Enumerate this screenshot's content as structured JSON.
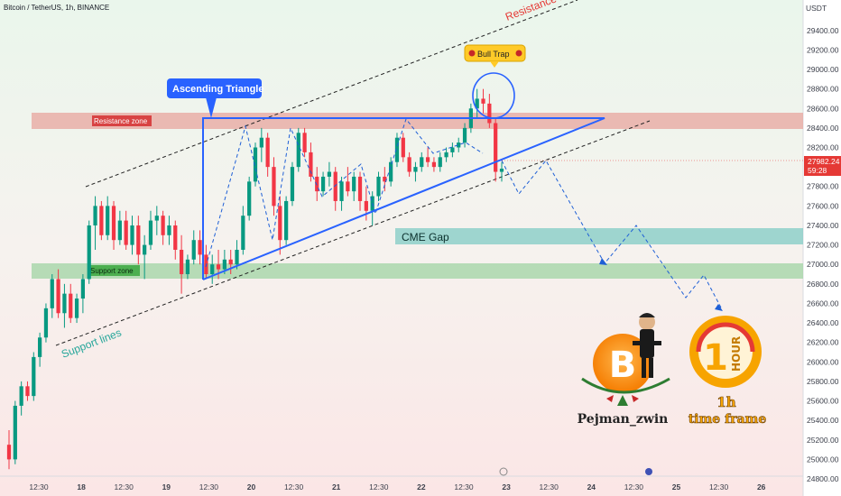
{
  "header": {
    "symbol_line": "Bitcoin / TetherUS, 1h, BINANCE",
    "currency": "USDT"
  },
  "price_badge": {
    "price": "27982.24",
    "countdown": "59:28",
    "color": "#e53935"
  },
  "labels": {
    "resistance_zone": "Resistance zone",
    "support_zone": "Support zone",
    "ascending_triangle": "Ascending Triangle",
    "cme_gap": "CME Gap",
    "resistance_lines": "Resistance lines",
    "support_lines": "Support lines",
    "bull_trap": "Bull Trap",
    "author": "Pejman_zwin",
    "timeframe_line1": "1h",
    "timeframe_line2": "time frame",
    "hour_logo": "HOUR",
    "hour_logo_digit": "1",
    "bitcoin_logo": "B"
  },
  "colors": {
    "up": "#089981",
    "down": "#f23645",
    "triangle": "#2962ff",
    "resistance_zone": "#e8a59e",
    "support_zone": "#a5d6a7",
    "cme_gap": "#80cbc4",
    "bull_trap_bg": "#ffca28",
    "projection": "#1e5fd6",
    "hour_logo": "#f7a400"
  },
  "chart_data": {
    "type": "candlestick",
    "symbol": "BTCUSDT",
    "timeframe": "1h",
    "ylim": [
      24800,
      29500
    ],
    "y_ticks": [
      24800,
      25000,
      25200,
      25400,
      25600,
      25800,
      26000,
      26200,
      26400,
      26600,
      26800,
      27000,
      27200,
      27400,
      27600,
      27800,
      28000,
      28200,
      28400,
      28600,
      28800,
      29000,
      29200,
      29400
    ],
    "y_tick_labels": [
      "24800.00",
      "25000.00",
      "25200.00",
      "25400.00",
      "25600.00",
      "25800.00",
      "26000.00",
      "26200.00",
      "26400.00",
      "26600.00",
      "26800.00",
      "27000.00",
      "27200.00",
      "27400.00",
      "27600.00",
      "27800.00",
      "28000.00",
      "28200.00",
      "28400.00",
      "28600.00",
      "28800.00",
      "29000.00",
      "29200.00",
      "29400.00"
    ],
    "x_ticks": [
      {
        "label": "12:30",
        "bold": false
      },
      {
        "label": "18",
        "bold": true
      },
      {
        "label": "12:30",
        "bold": false
      },
      {
        "label": "19",
        "bold": true
      },
      {
        "label": "12:30",
        "bold": false
      },
      {
        "label": "20",
        "bold": true
      },
      {
        "label": "12:30",
        "bold": false
      },
      {
        "label": "21",
        "bold": true
      },
      {
        "label": "12:30",
        "bold": false
      },
      {
        "label": "22",
        "bold": true
      },
      {
        "label": "12:30",
        "bold": false
      },
      {
        "label": "23",
        "bold": true
      },
      {
        "label": "12:30",
        "bold": false
      },
      {
        "label": "24",
        "bold": true
      },
      {
        "label": "12:30",
        "bold": false
      },
      {
        "label": "25",
        "bold": true
      },
      {
        "label": "12:30",
        "bold": false
      },
      {
        "label": "26",
        "bold": true
      }
    ],
    "candles": [
      [
        25150,
        25300,
        24900,
        25000
      ],
      [
        25000,
        25600,
        24950,
        25550
      ],
      [
        25550,
        25800,
        25450,
        25750
      ],
      [
        25750,
        25800,
        25600,
        25650
      ],
      [
        25650,
        26100,
        25600,
        26050
      ],
      [
        26050,
        26300,
        25950,
        26250
      ],
      [
        26250,
        26600,
        26200,
        26550
      ],
      [
        26550,
        26900,
        26450,
        26850
      ],
      [
        26850,
        26950,
        26450,
        26500
      ],
      [
        26500,
        26800,
        26350,
        26700
      ],
      [
        26700,
        26800,
        26400,
        26450
      ],
      [
        26450,
        26700,
        26400,
        26650
      ],
      [
        26650,
        26900,
        26500,
        26850
      ],
      [
        26850,
        27450,
        26800,
        27400
      ],
      [
        27400,
        27700,
        27150,
        27600
      ],
      [
        27600,
        27650,
        27250,
        27300
      ],
      [
        27300,
        27700,
        27250,
        27600
      ],
      [
        27600,
        27650,
        27150,
        27250
      ],
      [
        27250,
        27550,
        27200,
        27450
      ],
      [
        27450,
        27550,
        27150,
        27200
      ],
      [
        27200,
        27500,
        27100,
        27400
      ],
      [
        27400,
        27500,
        27000,
        27100
      ],
      [
        27100,
        27300,
        26850,
        27200
      ],
      [
        27200,
        27550,
        27150,
        27450
      ],
      [
        27450,
        27600,
        27300,
        27500
      ],
      [
        27500,
        27550,
        27200,
        27300
      ],
      [
        27300,
        27500,
        27200,
        27400
      ],
      [
        27400,
        27450,
        27050,
        27150
      ],
      [
        27150,
        27300,
        26700,
        26900
      ],
      [
        26900,
        27100,
        26850,
        27050
      ],
      [
        27050,
        27350,
        27000,
        27250
      ],
      [
        27250,
        27350,
        27000,
        27100
      ],
      [
        27100,
        27200,
        26850,
        26900
      ],
      [
        26900,
        27100,
        26800,
        27000
      ],
      [
        27000,
        27150,
        26850,
        26950
      ],
      [
        26950,
        27150,
        26900,
        27050
      ],
      [
        27050,
        27150,
        26900,
        27000
      ],
      [
        27000,
        27250,
        26950,
        27150
      ],
      [
        27150,
        27600,
        27100,
        27500
      ],
      [
        27500,
        27900,
        27450,
        27850
      ],
      [
        27850,
        28250,
        27800,
        28200
      ],
      [
        28200,
        28400,
        28050,
        28300
      ],
      [
        28300,
        28350,
        27900,
        28000
      ],
      [
        28000,
        28100,
        27500,
        27600
      ],
      [
        27600,
        27700,
        27100,
        27250
      ],
      [
        27250,
        27700,
        27200,
        27650
      ],
      [
        27650,
        28050,
        27600,
        28000
      ],
      [
        28000,
        28400,
        27950,
        28350
      ],
      [
        28350,
        28400,
        28100,
        28150
      ],
      [
        28150,
        28250,
        27850,
        27900
      ],
      [
        27900,
        28000,
        27650,
        27750
      ],
      [
        27750,
        27950,
        27700,
        27900
      ],
      [
        27900,
        28050,
        27800,
        27950
      ],
      [
        27950,
        28000,
        27550,
        27650
      ],
      [
        27650,
        27900,
        27550,
        27850
      ],
      [
        27850,
        28000,
        27700,
        27750
      ],
      [
        27750,
        27950,
        27650,
        27900
      ],
      [
        27900,
        27950,
        27550,
        27650
      ],
      [
        27650,
        27800,
        27450,
        27550
      ],
      [
        27550,
        27750,
        27400,
        27700
      ],
      [
        27700,
        27950,
        27650,
        27900
      ],
      [
        27900,
        28000,
        27750,
        27850
      ],
      [
        27850,
        28100,
        27800,
        28050
      ],
      [
        28050,
        28350,
        28000,
        28300
      ],
      [
        28300,
        28350,
        28050,
        28100
      ],
      [
        28100,
        28150,
        27900,
        27950
      ],
      [
        27950,
        28050,
        27850,
        28000
      ],
      [
        28000,
        28150,
        27950,
        28100
      ],
      [
        28100,
        28200,
        28000,
        28050
      ],
      [
        28050,
        28100,
        27950,
        28000
      ],
      [
        28000,
        28150,
        27950,
        28100
      ],
      [
        28100,
        28200,
        28050,
        28150
      ],
      [
        28150,
        28250,
        28100,
        28200
      ],
      [
        28200,
        28300,
        28150,
        28250
      ],
      [
        28250,
        28450,
        28200,
        28400
      ],
      [
        28400,
        28650,
        28350,
        28600
      ],
      [
        28600,
        28800,
        28500,
        28700
      ],
      [
        28700,
        28800,
        28550,
        28650
      ],
      [
        28650,
        28750,
        28400,
        28450
      ],
      [
        28450,
        28500,
        27850,
        27950
      ],
      [
        27950,
        28050,
        27850,
        27982
      ]
    ]
  }
}
